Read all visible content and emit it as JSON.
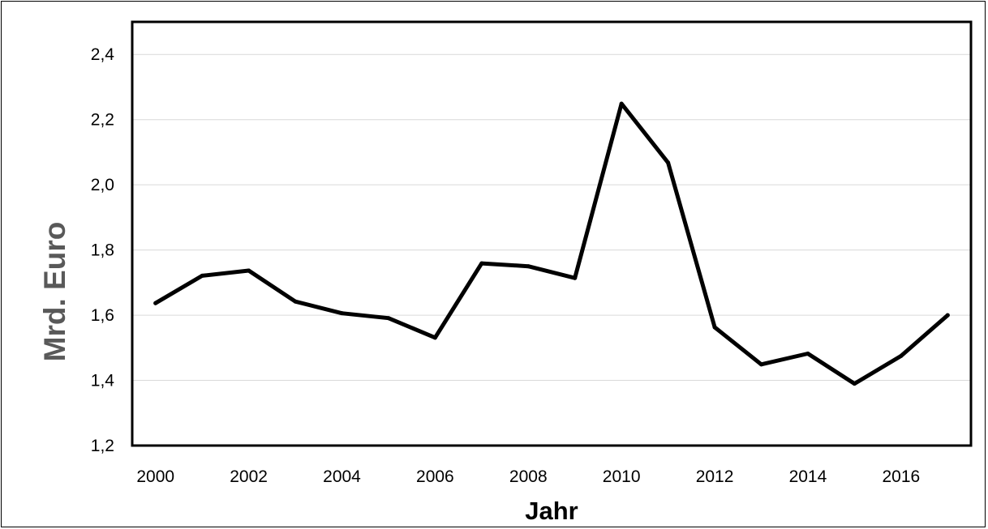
{
  "chart_data": {
    "type": "line",
    "title": "",
    "xlabel": "Jahr",
    "ylabel": "Mrd. Euro",
    "x": [
      2000,
      2001,
      2002,
      2003,
      2004,
      2005,
      2006,
      2007,
      2008,
      2009,
      2010,
      2011,
      2012,
      2013,
      2014,
      2015,
      2016,
      2017
    ],
    "series": [
      {
        "values": [
          1.637,
          1.721,
          1.737,
          1.642,
          1.606,
          1.591,
          1.531,
          1.759,
          1.75,
          1.714,
          2.249,
          2.068,
          1.563,
          1.449,
          1.482,
          1.39,
          1.475,
          1.6
        ],
        "color": "#000000"
      }
    ],
    "ylim": [
      1.2,
      2.5
    ],
    "yticks": [
      "1,2",
      "1,4",
      "1,6",
      "1,8",
      "2,0",
      "2,2",
      "2,4"
    ],
    "ytick_values": [
      1.2,
      1.4,
      1.6,
      1.8,
      2.0,
      2.2,
      2.4
    ],
    "xticks": [
      "2000",
      "2002",
      "2004",
      "2006",
      "2008",
      "2010",
      "2012",
      "2014",
      "2016"
    ],
    "xtick_values": [
      2000,
      2002,
      2004,
      2006,
      2008,
      2010,
      2012,
      2014,
      2016
    ],
    "xlim": [
      1999.5,
      2017.5
    ],
    "grid": true,
    "legend": "none",
    "colors": {
      "line": "#000000",
      "grid": "#d9d9d9",
      "axis": "#000000",
      "ylabel": "#595959"
    }
  }
}
